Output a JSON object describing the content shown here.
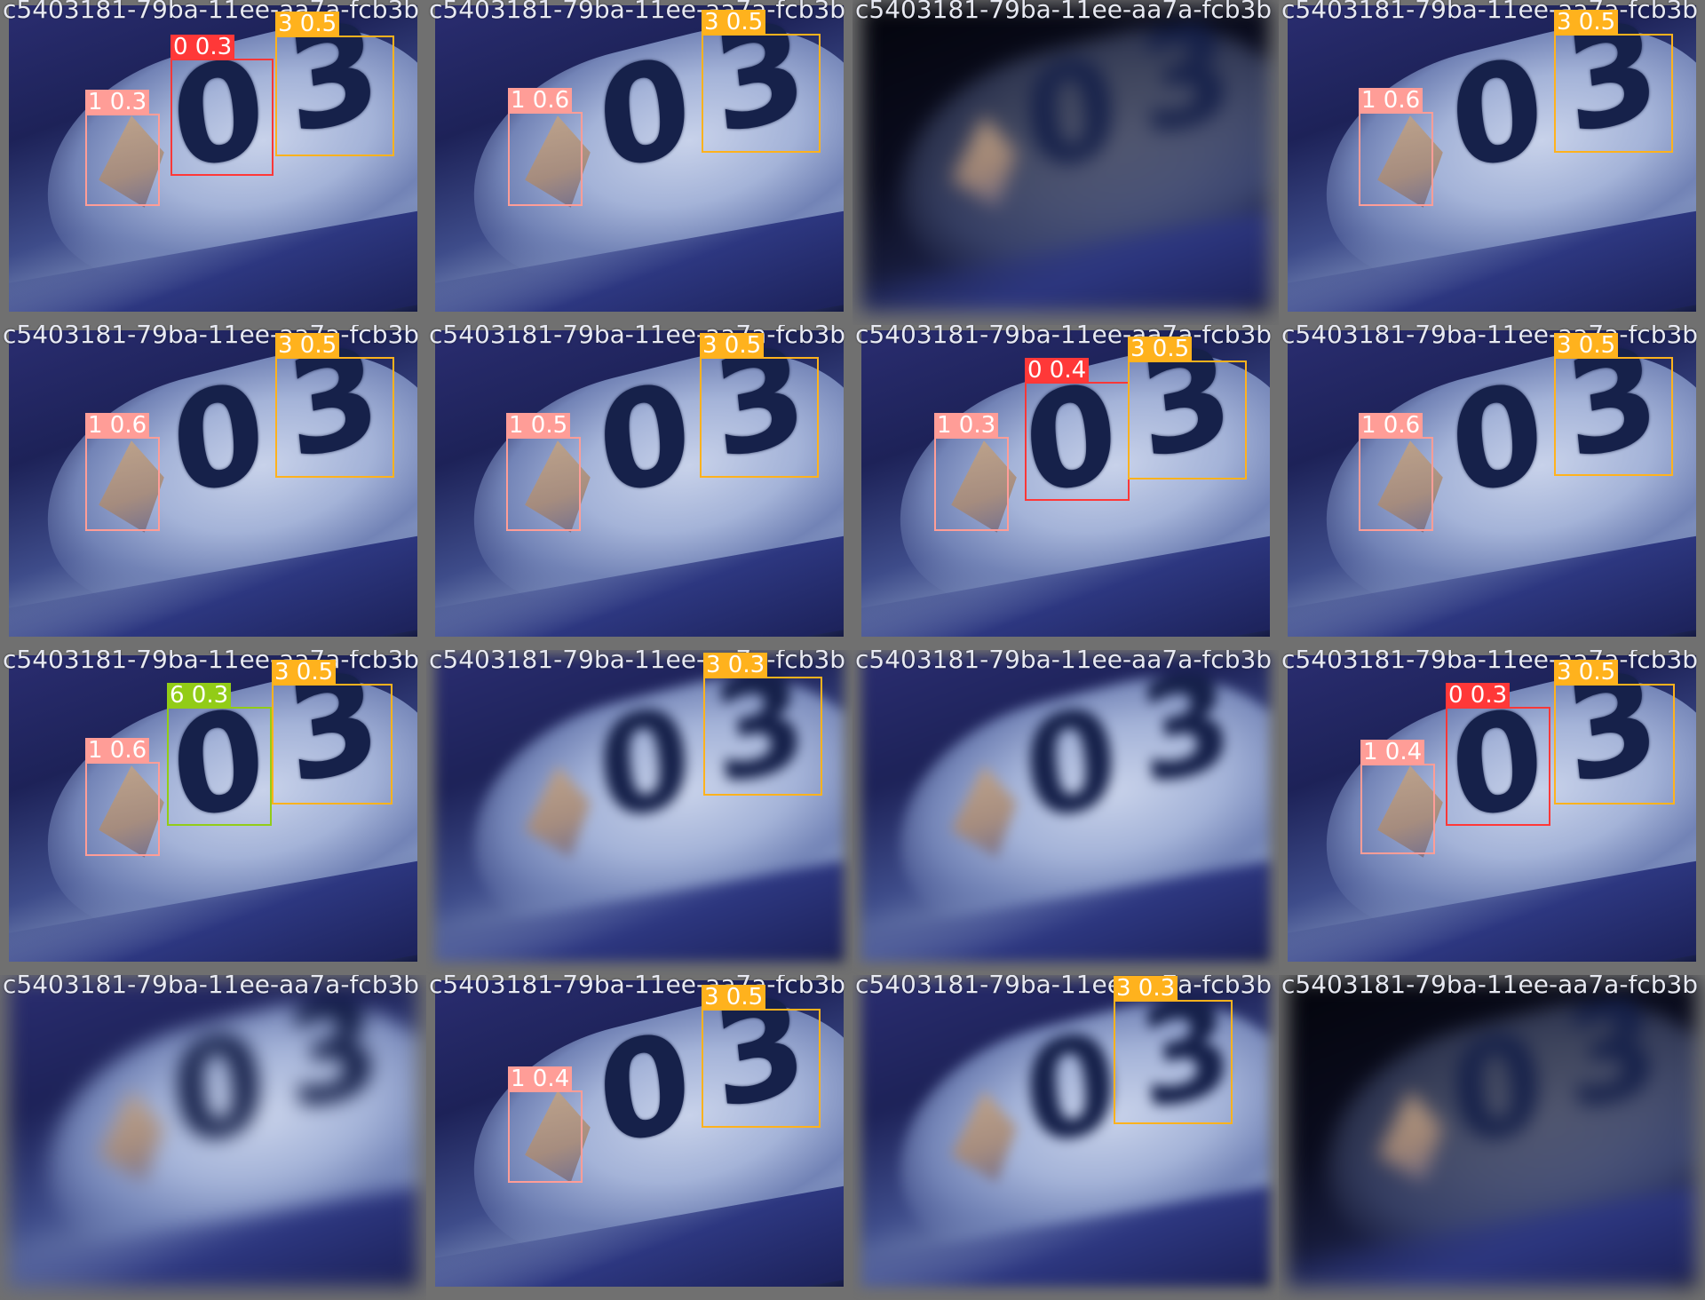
{
  "classes": {
    "0": {
      "color": "#ff3838"
    },
    "1": {
      "color": "#ff9d97"
    },
    "3": {
      "color": "#ffb21d"
    },
    "6": {
      "color": "#92cc17"
    }
  },
  "tiles": [
    {
      "title": "c5403181-79ba-11ee-aa7a-fcb3b",
      "variant": "normal",
      "detections": [
        {
          "label": "1 0.3",
          "cls": "1"
        },
        {
          "label": "0 0.3",
          "cls": "0"
        },
        {
          "label": "3 0.5",
          "cls": "3"
        }
      ]
    },
    {
      "title": "c5403181-79ba-11ee-aa7a-fcb3b",
      "variant": "normal",
      "detections": [
        {
          "label": "1 0.6",
          "cls": "1"
        },
        {
          "label": "3 0.5",
          "cls": "3"
        }
      ]
    },
    {
      "title": "c5403181-79ba-11ee-aa7a-fcb3b",
      "variant": "dark heavy",
      "detections": []
    },
    {
      "title": "c5403181-79ba-11ee-aa7a-fcb3b",
      "variant": "normal",
      "detections": [
        {
          "label": "1 0.6",
          "cls": "1"
        },
        {
          "label": "3 0.5",
          "cls": "3"
        }
      ]
    },
    {
      "title": "c5403181-79ba-11ee-aa7a-fcb3b",
      "variant": "normal",
      "detections": [
        {
          "label": "1 0.6",
          "cls": "1"
        },
        {
          "label": "3 0.5",
          "cls": "3"
        }
      ]
    },
    {
      "title": "c5403181-79ba-11ee-aa7a-fcb3b",
      "variant": "normal",
      "detections": [
        {
          "label": "1 0.5",
          "cls": "1"
        },
        {
          "label": "3 0.5",
          "cls": "3"
        }
      ]
    },
    {
      "title": "c5403181-79ba-11ee-aa7a-fcb3b",
      "variant": "normal",
      "detections": [
        {
          "label": "1 0.3",
          "cls": "1"
        },
        {
          "label": "0 0.4",
          "cls": "0"
        },
        {
          "label": "3 0.5",
          "cls": "3"
        }
      ]
    },
    {
      "title": "c5403181-79ba-11ee-aa7a-fcb3b",
      "variant": "normal",
      "detections": [
        {
          "label": "1 0.6",
          "cls": "1"
        },
        {
          "label": "3 0.5",
          "cls": "3"
        }
      ]
    },
    {
      "title": "c5403181-79ba-11ee-aa7a-fcb3b",
      "variant": "normal",
      "detections": [
        {
          "label": "1 0.6",
          "cls": "1"
        },
        {
          "label": "6 0.3",
          "cls": "6"
        },
        {
          "label": "3 0.5",
          "cls": "3"
        }
      ]
    },
    {
      "title": "c5403181-79ba-11ee-aa7a-fcb3b",
      "variant": "blur",
      "detections": [
        {
          "label": "3 0.3",
          "cls": "3"
        }
      ]
    },
    {
      "title": "c5403181-79ba-11ee-aa7a-fcb3b",
      "variant": "blur",
      "detections": []
    },
    {
      "title": "c5403181-79ba-11ee-aa7a-fcb3b",
      "variant": "normal",
      "detections": [
        {
          "label": "1 0.4",
          "cls": "1"
        },
        {
          "label": "0 0.3",
          "cls": "0"
        },
        {
          "label": "3 0.5",
          "cls": "3"
        }
      ]
    },
    {
      "title": "c5403181-79ba-11ee-aa7a-fcb3b",
      "variant": "heavy",
      "detections": []
    },
    {
      "title": "c5403181-79ba-11ee-aa7a-fcb3b",
      "variant": "normal",
      "detections": [
        {
          "label": "1 0.4",
          "cls": "1"
        },
        {
          "label": "3 0.5",
          "cls": "3"
        }
      ]
    },
    {
      "title": "c5403181-79ba-11ee-aa7a-fcb3b",
      "variant": "blur",
      "detections": [
        {
          "label": "3 0.3",
          "cls": "3"
        }
      ]
    },
    {
      "title": "c5403181-79ba-11ee-aa7a-fcb3b",
      "variant": "dark heavy",
      "detections": []
    }
  ]
}
